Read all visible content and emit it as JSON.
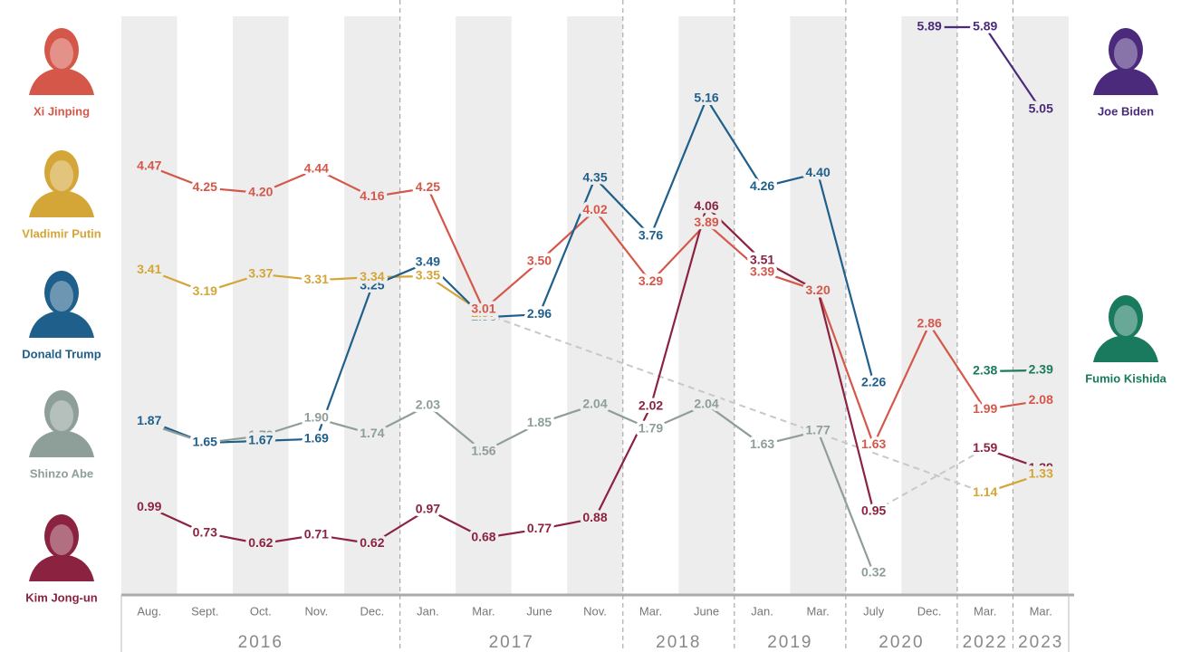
{
  "chart_data": {
    "type": "line",
    "categories": [
      "Aug.",
      "Sept.",
      "Oct.",
      "Nov.",
      "Dec.",
      "Jan.",
      "Mar.",
      "June",
      "Nov.",
      "Mar.",
      "June",
      "Jan.",
      "Mar.",
      "July",
      "Dec.",
      "Mar.",
      "Mar."
    ],
    "category_years": [
      "2016",
      "2016",
      "2016",
      "2016",
      "2016",
      "2017",
      "2017",
      "2017",
      "2017",
      "2018",
      "2018",
      "2019",
      "2019",
      "2020",
      "2020",
      "2022",
      "2023"
    ],
    "series": [
      {
        "name": "Xi Jinping",
        "color": "#d4574a",
        "values": [
          4.47,
          4.25,
          4.2,
          4.44,
          4.16,
          4.25,
          3.01,
          3.5,
          4.02,
          3.29,
          3.89,
          3.39,
          3.2,
          1.63,
          2.86,
          1.99,
          2.08
        ],
        "value_labels": [
          "4.47",
          "4.25",
          "4.20",
          "4.44",
          "4.16",
          "4.25",
          "3.01",
          "3.50",
          "4.02",
          "3.29",
          "3.89",
          "3.39",
          "3.20",
          "1.63",
          "2.86",
          "1.99",
          "2.08"
        ]
      },
      {
        "name": "Vladimir Putin",
        "color": "#d4a537",
        "values": [
          3.41,
          3.19,
          3.37,
          3.31,
          3.34,
          3.35,
          2.97,
          null,
          null,
          null,
          null,
          null,
          null,
          null,
          null,
          1.14,
          1.33
        ],
        "value_labels": [
          "3.41",
          "3.19",
          "3.37",
          "3.31",
          "3.34",
          "3.35",
          "2.97",
          null,
          null,
          null,
          null,
          null,
          null,
          null,
          null,
          "1.14",
          "1.33"
        ]
      },
      {
        "name": "Donald Trump",
        "color": "#1f5f8b",
        "values": [
          1.87,
          1.65,
          1.67,
          1.69,
          3.25,
          3.49,
          2.93,
          2.96,
          4.35,
          3.76,
          5.16,
          4.26,
          4.4,
          2.26,
          null,
          null,
          null
        ],
        "value_labels": [
          "1.87",
          "1.65",
          "1.67",
          "1.69",
          "3.25",
          "3.49",
          "2.93",
          "2.96",
          "4.35",
          "3.76",
          "5.16",
          "4.26",
          "4.40",
          "2.26",
          null,
          null,
          null
        ]
      },
      {
        "name": "Shinzo Abe",
        "color": "#8e9e98",
        "values": [
          1.84,
          1.65,
          1.72,
          1.9,
          1.74,
          2.03,
          1.56,
          1.85,
          2.04,
          1.79,
          2.04,
          1.63,
          1.77,
          0.32,
          null,
          null,
          null
        ],
        "value_labels": [
          "1.84",
          "1.65",
          "1.72",
          "1.90",
          "1.74",
          "2.03",
          "1.56",
          "1.85",
          "2.04",
          "1.79",
          "2.04",
          "1.63",
          "1.77",
          "0.32",
          null,
          null,
          null
        ]
      },
      {
        "name": "Kim Jong-un",
        "color": "#8b2340",
        "values": [
          0.99,
          0.73,
          0.62,
          0.71,
          0.62,
          0.97,
          0.68,
          0.77,
          0.88,
          2.02,
          4.06,
          3.51,
          3.2,
          0.95,
          null,
          1.59,
          1.39
        ],
        "value_labels": [
          "0.99",
          "0.73",
          "0.62",
          "0.71",
          "0.62",
          "0.97",
          "0.68",
          "0.77",
          "0.88",
          "2.02",
          "4.06",
          "3.51",
          "3.20",
          "0.95",
          null,
          "1.59",
          "1.39"
        ]
      },
      {
        "name": "Joe Biden",
        "color": "#4b2a7b",
        "values": [
          null,
          null,
          null,
          null,
          null,
          null,
          null,
          null,
          null,
          null,
          null,
          null,
          null,
          null,
          5.89,
          5.89,
          5.05
        ],
        "value_labels": [
          null,
          null,
          null,
          null,
          null,
          null,
          null,
          null,
          null,
          null,
          null,
          null,
          null,
          null,
          "5.89",
          "5.89",
          "5.05"
        ]
      },
      {
        "name": "Fumio Kishida",
        "color": "#1a7a5e",
        "values": [
          null,
          null,
          null,
          null,
          null,
          null,
          null,
          null,
          null,
          null,
          null,
          null,
          null,
          null,
          null,
          2.38,
          2.39
        ],
        "value_labels": [
          null,
          null,
          null,
          null,
          null,
          null,
          null,
          null,
          null,
          null,
          null,
          null,
          null,
          null,
          null,
          "2.38",
          "2.39"
        ]
      }
    ]
  }
}
